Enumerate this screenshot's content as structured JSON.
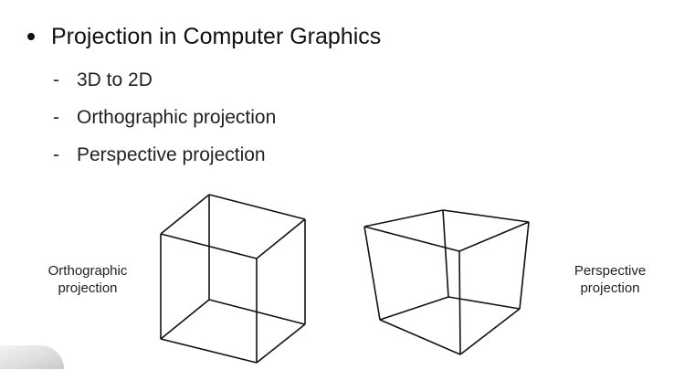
{
  "slide": {
    "main_bullet": "Projection in Computer Graphics",
    "sub_bullets": [
      {
        "dash": "-",
        "text": "3D to 2D"
      },
      {
        "dash": "-",
        "text": "Orthographic projection"
      },
      {
        "dash": "-",
        "text": "Perspective projection"
      }
    ],
    "figures": {
      "orthographic_caption_line1": "Orthographic",
      "orthographic_caption_line2": "projection",
      "perspective_caption_line1": "Perspective",
      "perspective_caption_line2": "projection"
    }
  },
  "colors": {
    "background": "#ffffff",
    "text": "#111111",
    "line": "#111111"
  }
}
